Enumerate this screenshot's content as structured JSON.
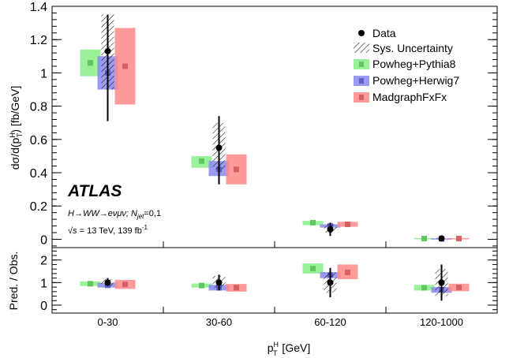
{
  "chart_data": {
    "type": "bar",
    "title": "",
    "categories": [
      "0-30",
      "30-60",
      "60-120",
      "120-1000"
    ],
    "xlabel_main": "p",
    "xlabel_sup": "H",
    "xlabel_sub": "T",
    "xlabel_unit": " [GeV]",
    "ylabel_main": "dσ/d(p",
    "ylabel_sup": "H",
    "ylabel_sub": "T",
    "ylabel_unit": ") [fb/GeV]",
    "ylim": [
      -0.05,
      1.4
    ],
    "yticks": [
      "0",
      "0.2",
      "0.4",
      "0.6",
      "0.8",
      "1",
      "1.2",
      "1.4"
    ],
    "ratio_ylabel": "Pred. / Obs.",
    "ratio_ylim": [
      -0.35,
      2.55
    ],
    "ratio_yticks": [
      "0",
      "1",
      "2"
    ],
    "colors": {
      "data": "#000000",
      "Powheg+Pythia8": "#88ee88",
      "Powheg+Herwig7": "#8888ee",
      "MadgraphFxFx": "#ff8888"
    },
    "data": {
      "name": "Data",
      "values": [
        1.13,
        0.55,
        0.06,
        0.005
      ],
      "err_low": [
        0.42,
        0.22,
        0.04,
        0.004
      ],
      "err_high": [
        0.22,
        0.19,
        0.04,
        0.004
      ]
    },
    "sys_uncertainty": {
      "name": "Sys. Uncertainty",
      "low": [
        0.9,
        0.42,
        0.04,
        0.002
      ],
      "high": [
        1.35,
        0.7,
        0.09,
        0.009
      ]
    },
    "series": [
      {
        "name": "Powheg+Pythia8",
        "values": [
          1.06,
          0.47,
          0.1,
          0.004
        ],
        "band_low": [
          0.98,
          0.43,
          0.085,
          0.002
        ],
        "band_high": [
          1.14,
          0.5,
          0.11,
          0.007
        ]
      },
      {
        "name": "Powheg+Herwig7",
        "values": [
          1.0,
          0.42,
          0.08,
          0.003
        ],
        "band_low": [
          0.9,
          0.38,
          0.07,
          0.001
        ],
        "band_high": [
          1.1,
          0.47,
          0.09,
          0.005
        ]
      },
      {
        "name": "MadgraphFxFx",
        "values": [
          1.04,
          0.42,
          0.09,
          0.004
        ],
        "band_low": [
          0.81,
          0.33,
          0.075,
          0.002
        ],
        "band_high": [
          1.27,
          0.51,
          0.105,
          0.007
        ]
      }
    ],
    "ratio": {
      "data": {
        "values": [
          1.0,
          1.0,
          1.0,
          1.0
        ],
        "err_low": [
          0.15,
          0.35,
          0.65,
          0.8
        ],
        "err_high": [
          0.2,
          0.35,
          0.65,
          0.8
        ]
      },
      "sys_uncertainty": {
        "low": [
          0.85,
          0.75,
          0.55,
          0.4
        ],
        "high": [
          1.15,
          1.3,
          1.45,
          1.6
        ]
      },
      "series": [
        {
          "name": "Powheg+Pythia8",
          "values": [
            0.95,
            0.87,
            1.62,
            0.77
          ],
          "band_low": [
            0.85,
            0.78,
            1.4,
            0.65
          ],
          "band_high": [
            1.05,
            0.96,
            1.85,
            0.9
          ]
        },
        {
          "name": "Powheg+Herwig7",
          "values": [
            0.88,
            0.77,
            1.33,
            0.68
          ],
          "band_low": [
            0.78,
            0.65,
            1.2,
            0.55
          ],
          "band_high": [
            0.98,
            0.9,
            1.46,
            0.8
          ]
        },
        {
          "name": "MadgraphFxFx",
          "values": [
            0.92,
            0.77,
            1.45,
            0.78
          ],
          "band_low": [
            0.72,
            0.6,
            1.15,
            0.62
          ],
          "band_high": [
            1.12,
            0.94,
            1.8,
            0.95
          ]
        }
      ]
    },
    "legend": {
      "position": "top-right",
      "entries": [
        "Data",
        "Sys. Uncertainty",
        "Powheg+Pythia8",
        "Powheg+Herwig7",
        "MadgraphFxFx"
      ]
    },
    "annotations": {
      "experiment": "ATLAS",
      "process": "H→WW→eνμν; N",
      "process_sub": "jet",
      "process_tail": "=0,1",
      "energy_sqrt": "√s",
      "energy_text": " = 13 TeV, 139 fb",
      "energy_sup": "-1"
    }
  }
}
